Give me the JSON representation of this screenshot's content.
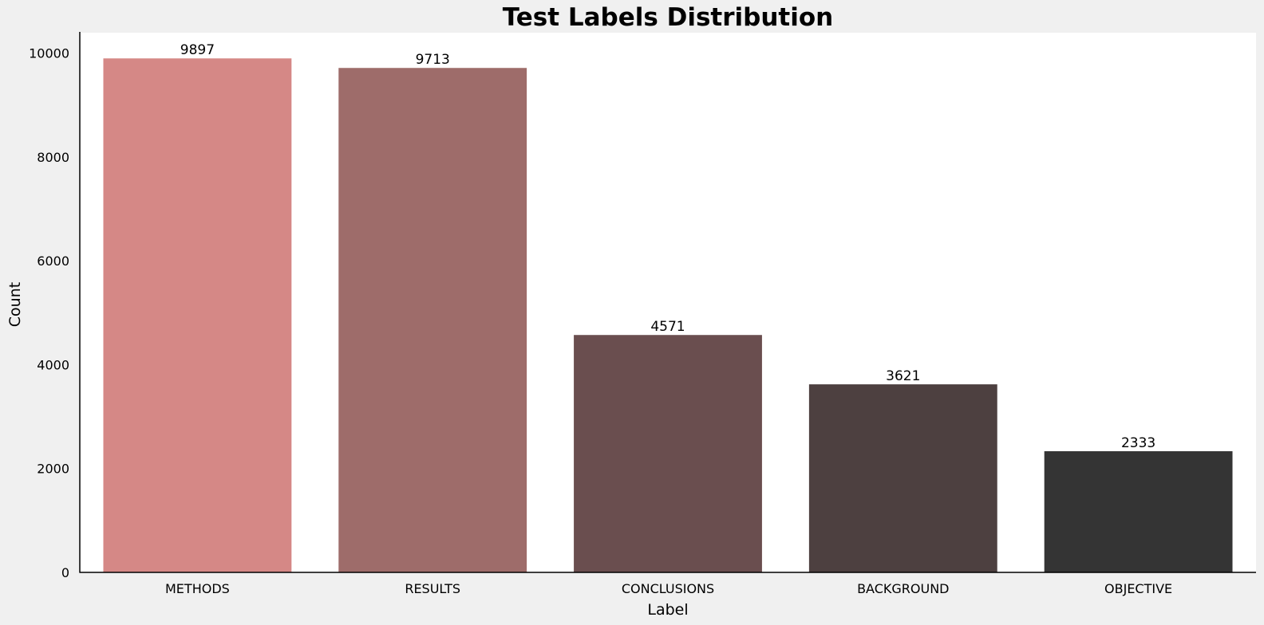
{
  "chart_data": {
    "type": "bar",
    "title": "Test Labels Distribution",
    "xlabel": "Label",
    "ylabel": "Count",
    "categories": [
      "METHODS",
      "RESULTS",
      "CONCLUSIONS",
      "BACKGROUND",
      "OBJECTIVE"
    ],
    "values": [
      9897,
      9713,
      4571,
      3621,
      2333
    ],
    "data_labels": [
      "9897",
      "9713",
      "4571",
      "3621",
      "2333"
    ],
    "colors": [
      "#d58886",
      "#9e6c6a",
      "#6a4e4f",
      "#4d4040",
      "#343434"
    ],
    "ylim": [
      0,
      10392
    ],
    "yticks": [
      0,
      2000,
      4000,
      6000,
      8000,
      10000
    ],
    "ytick_labels": [
      "0",
      "2000",
      "4000",
      "6000",
      "8000",
      "10000"
    ],
    "grid": false,
    "legend": "none",
    "plot_background": "#ffffff",
    "figure_background": "#f0f0f0"
  }
}
